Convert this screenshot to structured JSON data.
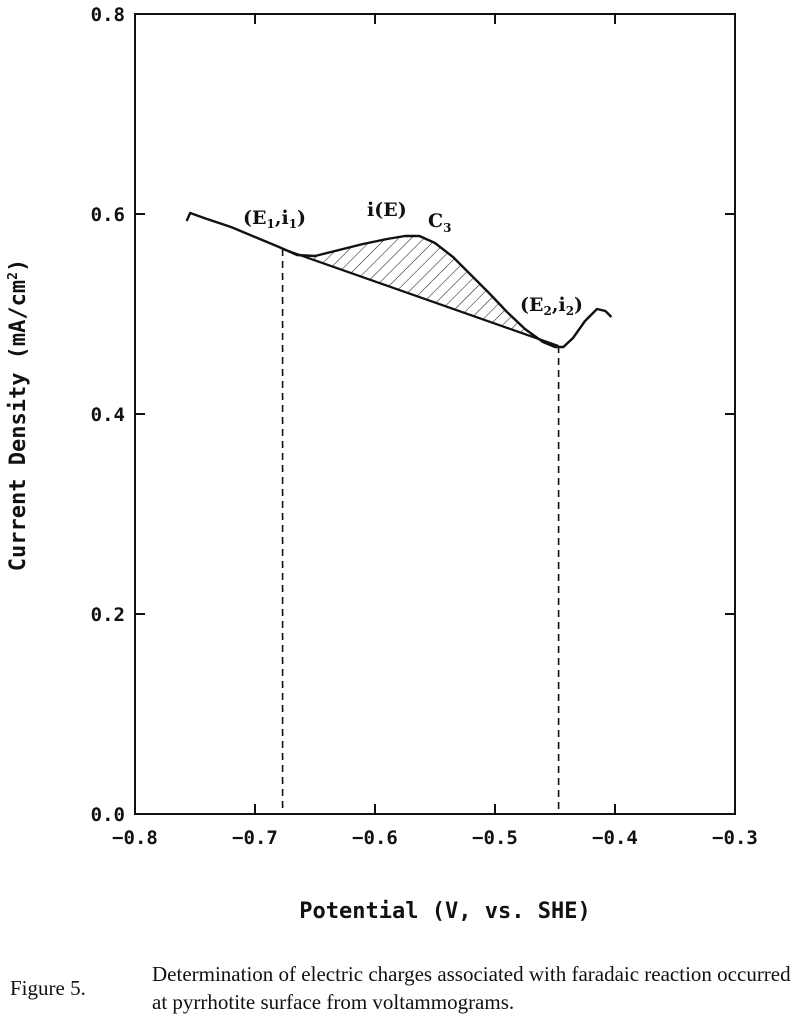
{
  "chart_data": {
    "type": "line",
    "xlabel": "Potential (V, vs. SHE)",
    "ylabel": "Current Density (mA/cm²)",
    "xlim": [
      -0.8,
      -0.3
    ],
    "ylim": [
      0.0,
      0.8
    ],
    "xticks": [
      -0.8,
      -0.7,
      -0.6,
      -0.5,
      -0.4,
      -0.3
    ],
    "yticks": [
      0.0,
      0.2,
      0.4,
      0.6,
      0.8
    ],
    "xtick_labels": [
      "−0.8",
      "−0.7",
      "−0.6",
      "−0.5",
      "−0.4",
      "−0.3"
    ],
    "ytick_labels": [
      "0.0",
      "0.2",
      "0.4",
      "0.6",
      "0.8"
    ],
    "grid": false,
    "series": [
      {
        "name": "i(E)",
        "x": [
          -0.757,
          -0.754,
          -0.74,
          -0.72,
          -0.7,
          -0.68,
          -0.665,
          -0.65,
          -0.63,
          -0.61,
          -0.59,
          -0.575,
          -0.563,
          -0.55,
          -0.535,
          -0.52,
          -0.505,
          -0.49,
          -0.475,
          -0.46,
          -0.45,
          -0.443,
          -0.435,
          -0.425,
          -0.415,
          -0.408,
          -0.403
        ],
        "y": [
          0.593,
          0.601,
          0.595,
          0.587,
          0.577,
          0.567,
          0.559,
          0.558,
          0.564,
          0.57,
          0.575,
          0.578,
          0.578,
          0.571,
          0.557,
          0.539,
          0.521,
          0.502,
          0.485,
          0.472,
          0.467,
          0.467,
          0.476,
          0.493,
          0.505,
          0.503,
          0.497
        ]
      }
    ],
    "baseline": {
      "x": [
        -0.677,
        -0.447
      ],
      "y": [
        0.565,
        0.468
      ]
    },
    "hatched_region": "area between i(E) and the baseline from E1 to E2",
    "markers": [
      {
        "label": "(E1,i1)",
        "x": -0.677,
        "y": 0.565
      },
      {
        "label": "(E2,i2)",
        "x": -0.447,
        "y": 0.468
      }
    ],
    "annotations": [
      {
        "text": "(E",
        "sub": "1",
        "mid": ",i",
        "sub2": "1",
        "end": ")"
      },
      {
        "text": "i(E)"
      },
      {
        "text": "C",
        "sub": "3"
      },
      {
        "text": "(E",
        "sub": "2",
        "mid": ",i",
        "sub2": "2",
        "end": ")"
      }
    ]
  },
  "caption": {
    "label": "Figure 5.",
    "text": "Determination of electric charges associated with faradaic reaction occurred at pyrrhotite surface from voltammograms."
  }
}
